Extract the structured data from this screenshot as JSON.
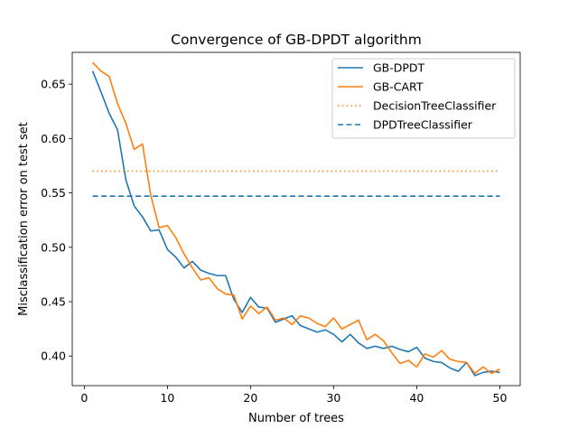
{
  "chart_data": {
    "type": "line",
    "title": "Convergence of GB-DPDT algorithm",
    "xlabel": "Number of trees",
    "ylabel": "Misclassification error on test set",
    "xlim": [
      -1.45,
      52.45
    ],
    "ylim": [
      0.3728,
      0.6792
    ],
    "xticks": [
      0,
      10,
      20,
      30,
      40,
      50
    ],
    "yticks": [
      0.4,
      0.45,
      0.5,
      0.55,
      0.6,
      0.65
    ],
    "xtick_labels": [
      "0",
      "10",
      "20",
      "30",
      "40",
      "50"
    ],
    "ytick_labels": [
      "0.40",
      "0.45",
      "0.50",
      "0.55",
      "0.60",
      "0.65"
    ],
    "grid": false,
    "legend_position": "top-right",
    "series": [
      {
        "name": "GB-DPDT",
        "color": "#1f77b4",
        "style": "solid",
        "x": [
          1,
          2,
          3,
          4,
          5,
          6,
          7,
          8,
          9,
          10,
          11,
          12,
          13,
          14,
          15,
          16,
          17,
          18,
          19,
          20,
          21,
          22,
          23,
          24,
          25,
          26,
          27,
          28,
          29,
          30,
          31,
          32,
          33,
          34,
          35,
          36,
          37,
          38,
          39,
          40,
          41,
          42,
          43,
          44,
          45,
          46,
          47,
          48,
          49,
          50
        ],
        "y": [
          0.662,
          0.643,
          0.623,
          0.608,
          0.562,
          0.538,
          0.528,
          0.515,
          0.516,
          0.498,
          0.491,
          0.481,
          0.487,
          0.479,
          0.476,
          0.474,
          0.474,
          0.452,
          0.44,
          0.454,
          0.445,
          0.444,
          0.431,
          0.434,
          0.437,
          0.428,
          0.425,
          0.422,
          0.424,
          0.42,
          0.413,
          0.42,
          0.412,
          0.407,
          0.409,
          0.407,
          0.409,
          0.406,
          0.404,
          0.408,
          0.398,
          0.395,
          0.394,
          0.389,
          0.386,
          0.394,
          0.382,
          0.385,
          0.386,
          0.385
        ]
      },
      {
        "name": "GB-CART",
        "color": "#ff7f0e",
        "style": "solid",
        "x": [
          1,
          2,
          3,
          4,
          5,
          6,
          7,
          8,
          9,
          10,
          11,
          12,
          13,
          14,
          15,
          16,
          17,
          18,
          19,
          20,
          21,
          22,
          23,
          24,
          25,
          26,
          27,
          28,
          29,
          30,
          31,
          32,
          33,
          34,
          35,
          36,
          37,
          38,
          39,
          40,
          41,
          42,
          43,
          44,
          45,
          46,
          47,
          48,
          49,
          50
        ],
        "y": [
          0.67,
          0.662,
          0.657,
          0.632,
          0.614,
          0.59,
          0.595,
          0.548,
          0.518,
          0.52,
          0.509,
          0.494,
          0.481,
          0.47,
          0.472,
          0.462,
          0.457,
          0.456,
          0.434,
          0.446,
          0.439,
          0.445,
          0.433,
          0.435,
          0.429,
          0.437,
          0.435,
          0.43,
          0.427,
          0.435,
          0.425,
          0.429,
          0.433,
          0.415,
          0.42,
          0.414,
          0.403,
          0.393,
          0.396,
          0.39,
          0.402,
          0.399,
          0.405,
          0.397,
          0.395,
          0.394,
          0.384,
          0.39,
          0.384,
          0.388
        ]
      },
      {
        "name": "DecisionTreeClassifier",
        "color": "#ff7f0e",
        "style": "dotted",
        "x": [
          1,
          50
        ],
        "y": [
          0.57,
          0.57
        ]
      },
      {
        "name": "DPDTreeClassifier",
        "color": "#1f77b4",
        "style": "dashed",
        "x": [
          1,
          50
        ],
        "y": [
          0.547,
          0.547
        ]
      }
    ]
  }
}
